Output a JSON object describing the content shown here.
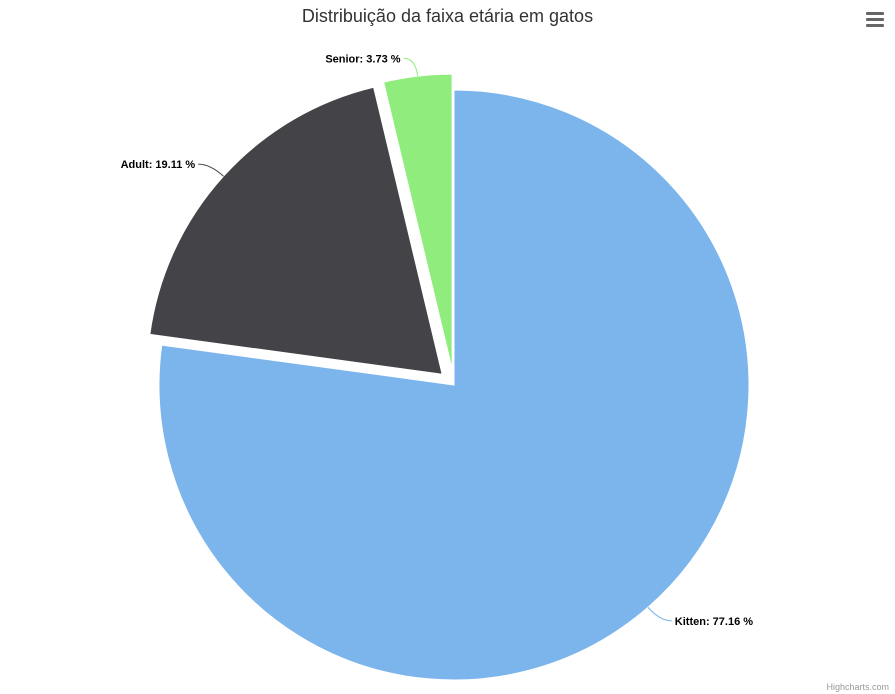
{
  "chart_data": {
    "type": "pie",
    "title": "Distribuição da faixa etária em gatos",
    "slices": [
      {
        "name": "Kitten",
        "value": 77.16,
        "label": "Kitten: 77.16 %",
        "color": "#7cb5ec"
      },
      {
        "name": "Adult",
        "value": 19.11,
        "label": "Adult: 19.11 %",
        "color": "#434348"
      },
      {
        "name": "Senior",
        "value": 3.73,
        "label": "Senior: 3.73 %",
        "color": "#90ed7d"
      }
    ]
  },
  "credits": "Highcharts.com",
  "menu_icon": "hamburger-menu-icon"
}
